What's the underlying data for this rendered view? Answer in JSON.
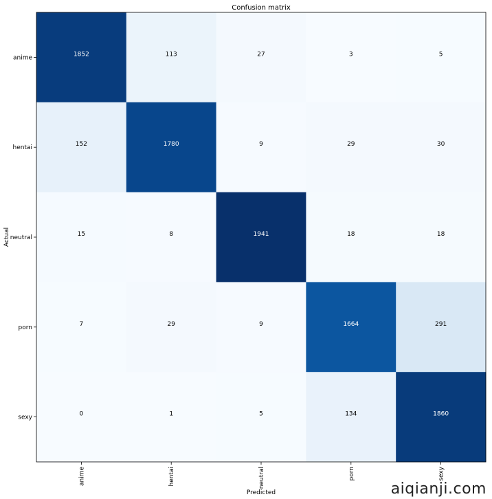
{
  "chart_data": {
    "type": "heatmap",
    "title": "Confusion matrix",
    "xlabel": "Predicted",
    "ylabel": "Actual",
    "x_categories": [
      "anime",
      "hentai",
      "neutral",
      "porn",
      "sexy"
    ],
    "y_categories": [
      "anime",
      "hentai",
      "neutral",
      "porn",
      "sexy"
    ],
    "matrix": [
      [
        1852,
        113,
        27,
        3,
        5
      ],
      [
        152,
        1780,
        9,
        29,
        30
      ],
      [
        15,
        8,
        1941,
        18,
        18
      ],
      [
        7,
        29,
        9,
        1664,
        291
      ],
      [
        0,
        1,
        5,
        134,
        1860
      ]
    ],
    "colormap": "Blues",
    "vmin": 0,
    "vmax": 1941,
    "grid": false
  },
  "watermark": "aiqianji.com"
}
